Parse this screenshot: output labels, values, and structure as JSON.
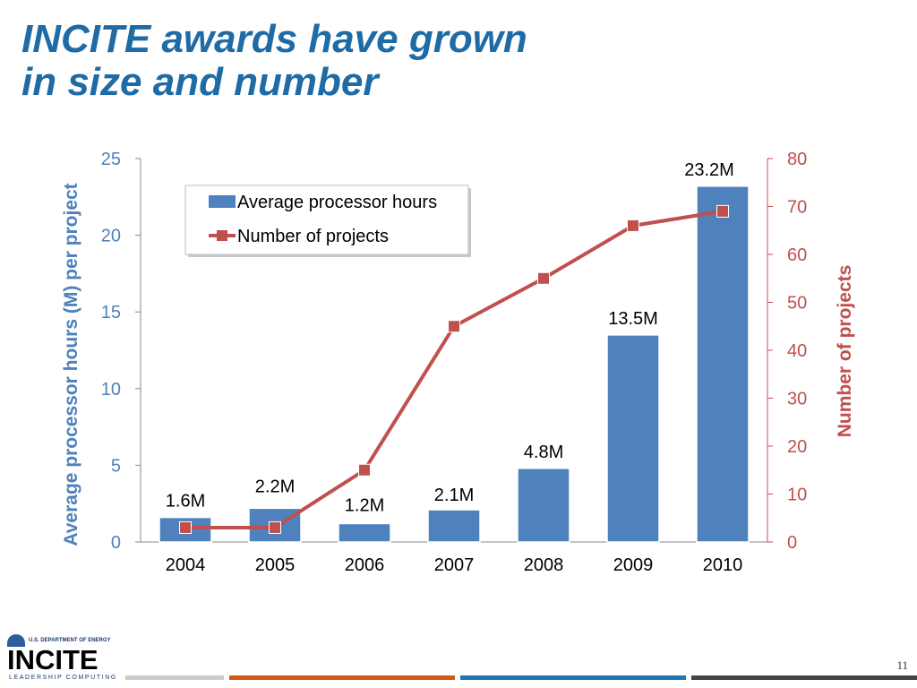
{
  "slide": {
    "title_line1": "INCITE awards have grown",
    "title_line2": "in size and number",
    "page_number": "11"
  },
  "logo": {
    "agency": "U.S. DEPARTMENT OF ENERGY",
    "word": "INCITE",
    "subtitle": "LEADERSHIP COMPUTING"
  },
  "colors": {
    "title": "#1f6ba5",
    "bar": "#4f81bd",
    "line": "#c0504d",
    "marker": "#c0504d",
    "axis_left": "#4f81bd",
    "axis_right": "#c0504d",
    "footer_bars": [
      "#cccccc",
      "#d45a17",
      "#1f77b4",
      "#444444"
    ]
  },
  "chart_data": {
    "type": "bar",
    "categories": [
      "2004",
      "2005",
      "2006",
      "2007",
      "2008",
      "2009",
      "2010"
    ],
    "series": [
      {
        "name": "Average processor hours",
        "type": "bar",
        "axis": "left",
        "values": [
          1.6,
          2.2,
          1.2,
          2.1,
          4.8,
          13.5,
          23.2
        ],
        "labels": [
          "1.6M",
          "2.2M",
          "1.2M",
          "2.1M",
          "4.8M",
          "13.5M",
          "23.2M"
        ]
      },
      {
        "name": "Number of projects",
        "type": "line",
        "axis": "right",
        "values": [
          3,
          3,
          15,
          45,
          55,
          66,
          69
        ]
      }
    ],
    "ylabel": "Average processor hours (M) per project",
    "y2label": "Number of projects",
    "ylim": [
      0,
      25
    ],
    "y2lim": [
      0,
      80
    ],
    "yticks": [
      "0",
      "5",
      "10",
      "15",
      "20",
      "25"
    ],
    "y2ticks": [
      "0",
      "10",
      "20",
      "30",
      "40",
      "50",
      "60",
      "70",
      "80"
    ],
    "legend_position": "top-left",
    "grid": false
  }
}
